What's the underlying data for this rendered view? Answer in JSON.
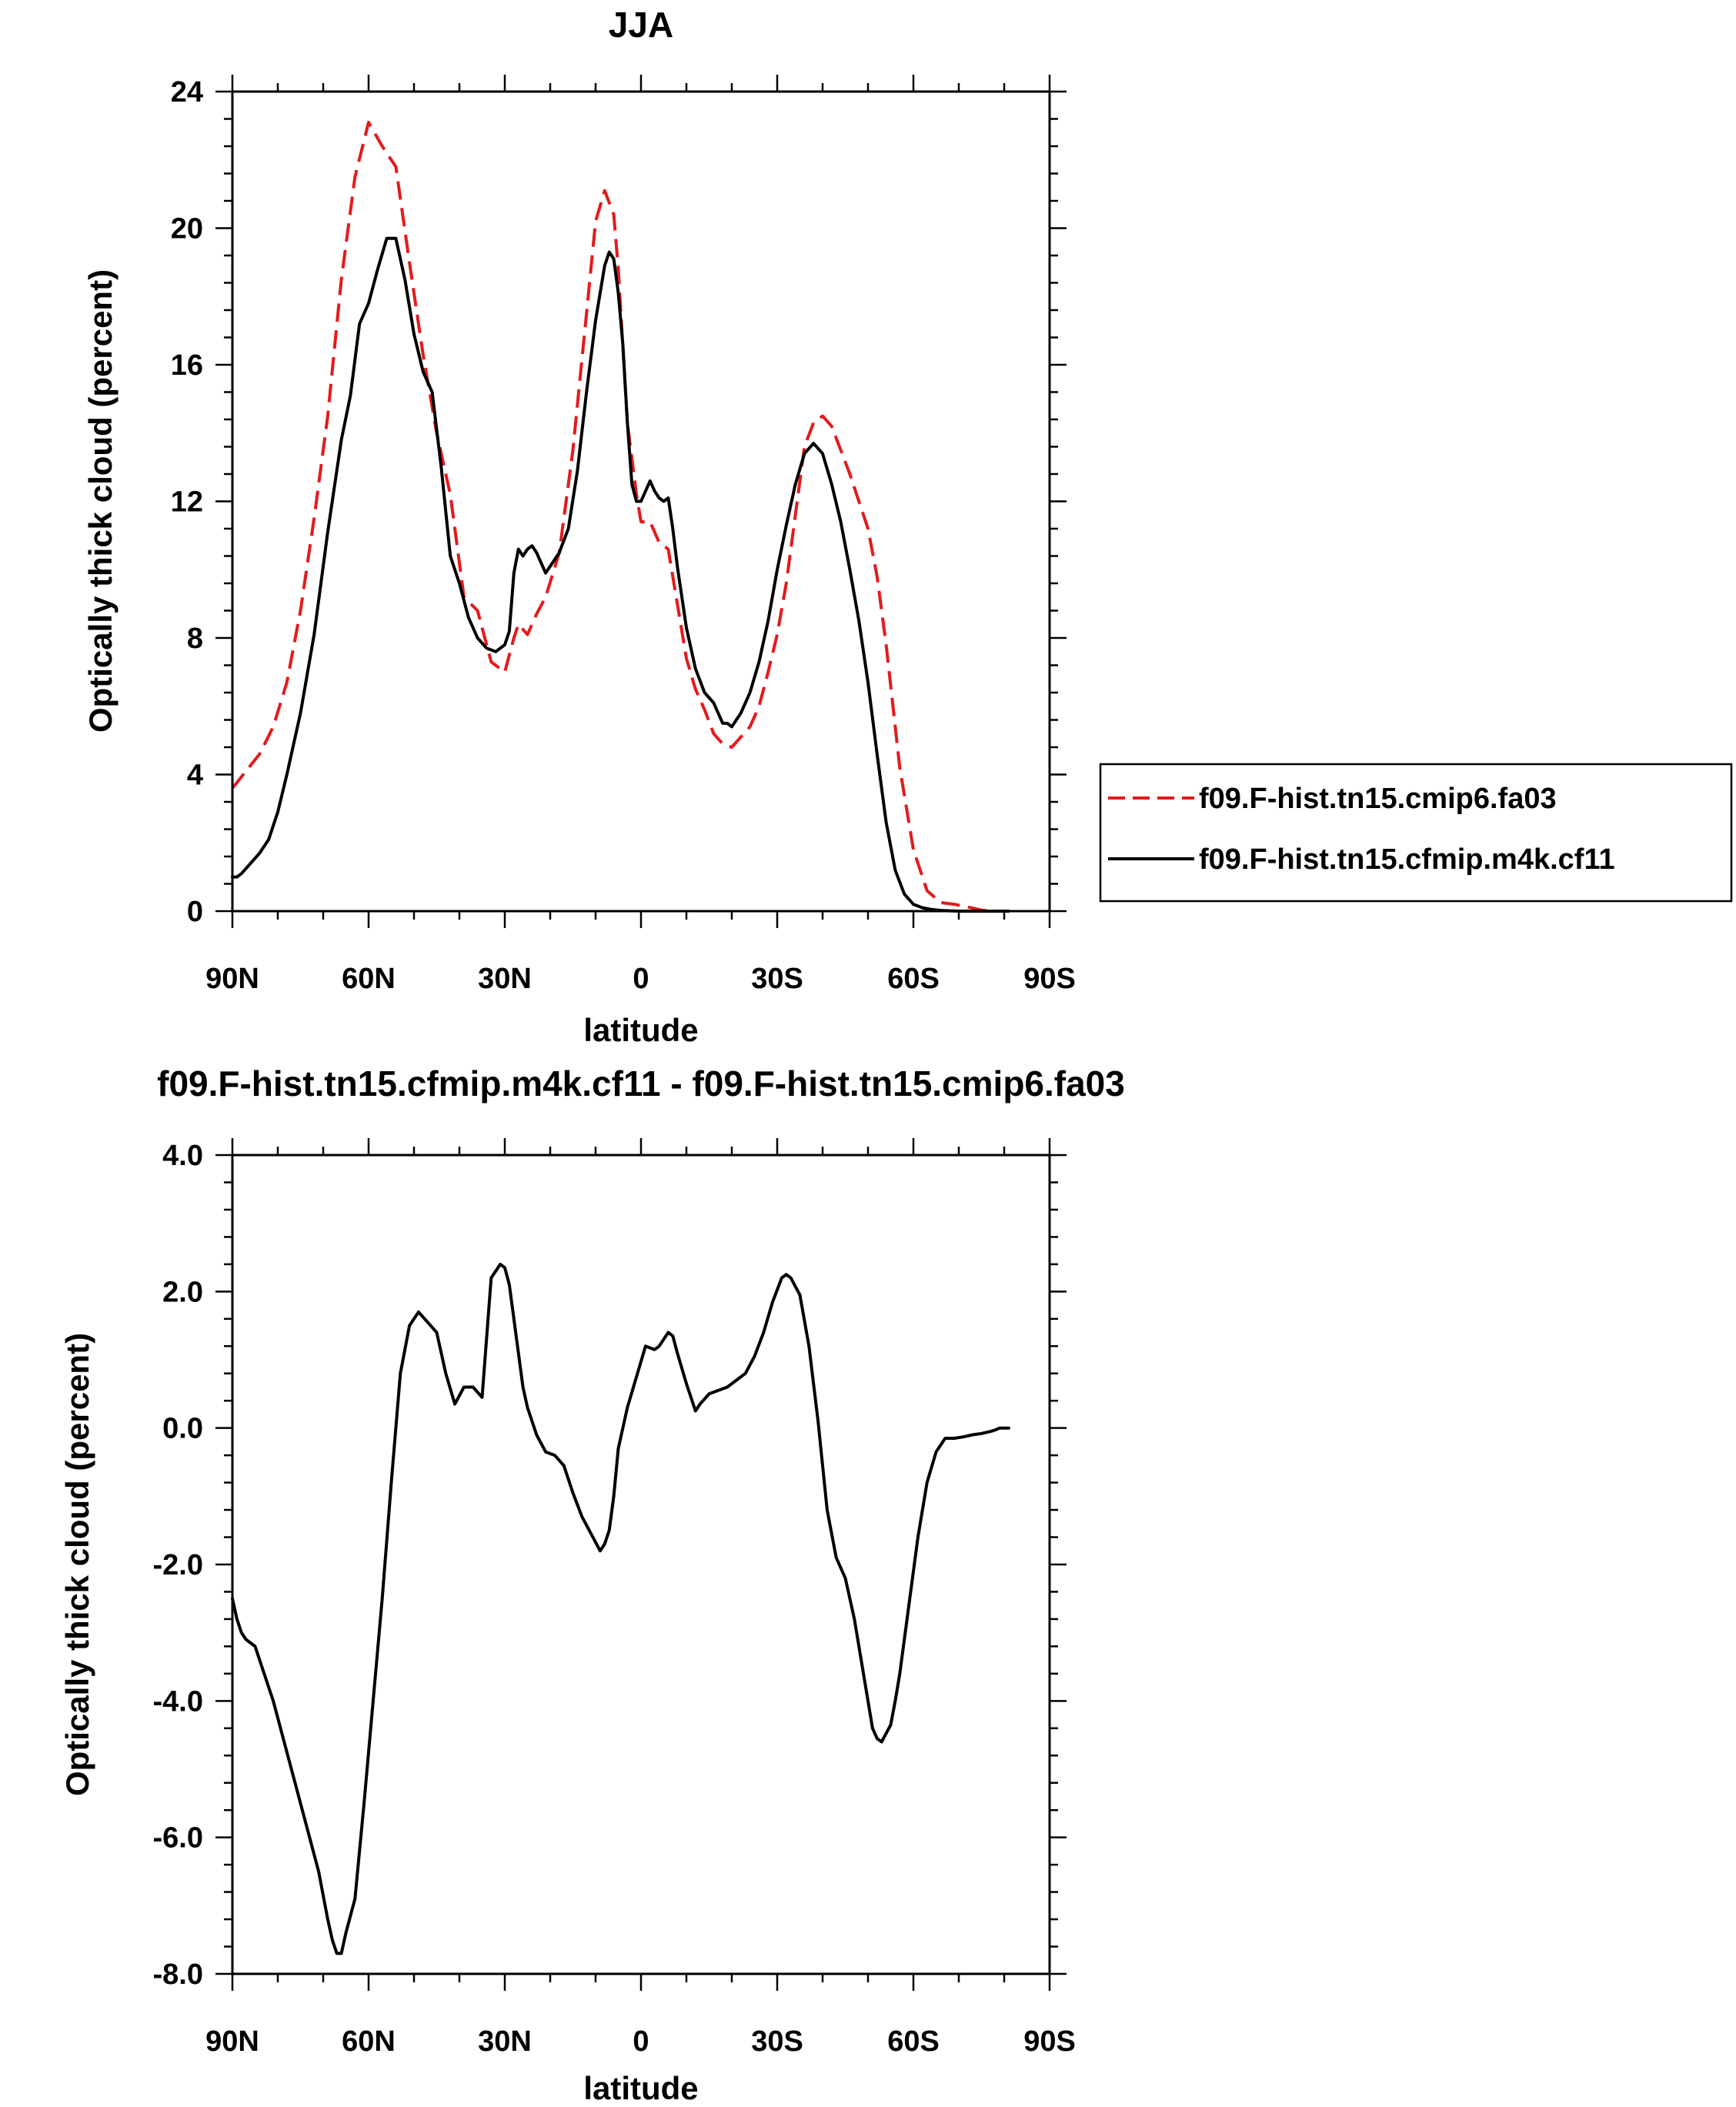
{
  "chart_data": [
    {
      "type": "line",
      "title": "JJA",
      "xlabel": "latitude",
      "ylabel": "Optically thick cloud (percent)",
      "xlim": [
        90,
        -90
      ],
      "ylim": [
        0,
        24
      ],
      "xticks": [
        90,
        60,
        30,
        0,
        -30,
        -60,
        -90
      ],
      "xtick_labels": [
        "90N",
        "60N",
        "30N",
        "0",
        "30S",
        "60S",
        "90S"
      ],
      "yticks": [
        0,
        4,
        8,
        12,
        16,
        20,
        24
      ],
      "ytick_labels": [
        "0",
        "4",
        "8",
        "12",
        "16",
        "20",
        "24"
      ],
      "legend_position": "right",
      "series": [
        {
          "name": "f09.F-hist.tn15.cmip6.fa03",
          "color": "#e41a1c",
          "style": "dashed",
          "x": [
            90,
            87,
            84,
            81,
            78,
            75,
            72,
            69,
            66,
            63,
            60,
            57,
            54,
            51,
            48,
            45,
            42,
            39,
            36,
            33,
            30,
            28,
            27,
            25,
            23,
            21,
            18,
            15,
            12,
            10,
            8,
            6,
            5,
            3,
            1,
            0,
            -2,
            -4,
            -6,
            -8,
            -10,
            -12,
            -14,
            -16,
            -18,
            -20,
            -22,
            -24,
            -26,
            -28,
            -30,
            -32,
            -34,
            -36,
            -38,
            -40,
            -42,
            -44,
            -46,
            -48,
            -50,
            -52,
            -54,
            -57,
            -60,
            -63,
            -66,
            -69,
            -72,
            -75,
            -78,
            -81
          ],
          "y": [
            3.6,
            4.1,
            4.6,
            5.4,
            6.7,
            8.8,
            11.5,
            14.5,
            18.5,
            21.5,
            23.1,
            22.4,
            21.8,
            19.0,
            16.3,
            14.0,
            12.2,
            9.2,
            8.8,
            7.3,
            7.0,
            8.0,
            8.4,
            8.1,
            8.7,
            9.2,
            10.5,
            13.5,
            17.5,
            20.2,
            21.1,
            20.4,
            18.8,
            14.3,
            12.2,
            11.4,
            11.4,
            10.8,
            10.6,
            9.0,
            7.4,
            6.5,
            5.9,
            5.2,
            4.9,
            4.8,
            5.1,
            5.4,
            6.0,
            7.0,
            8.1,
            9.6,
            11.6,
            13.6,
            14.3,
            14.5,
            14.2,
            13.5,
            12.8,
            12.0,
            11.2,
            9.8,
            7.8,
            4.2,
            1.8,
            0.6,
            0.25,
            0.2,
            0.12,
            0.03,
            0.0,
            0.0
          ]
        },
        {
          "name": "f09.F-hist.tn15.cfmip.m4k.cf11",
          "color": "#000000",
          "style": "solid",
          "x": [
            90,
            89,
            88,
            86,
            84,
            82,
            80,
            78,
            75,
            72,
            69,
            66,
            64,
            62,
            60,
            58,
            56,
            54,
            52,
            50,
            48,
            46,
            44,
            42,
            40,
            38,
            36,
            34,
            32,
            30,
            29,
            28,
            27,
            26,
            25,
            24,
            23,
            22,
            21,
            20,
            18,
            16,
            14,
            12,
            10,
            8,
            7,
            6,
            5,
            4,
            3,
            2,
            1,
            0,
            -1,
            -2,
            -3,
            -4,
            -5,
            -6,
            -7,
            -8,
            -10,
            -12,
            -14,
            -16,
            -18,
            -19,
            -20,
            -22,
            -24,
            -26,
            -28,
            -30,
            -32,
            -34,
            -36,
            -38,
            -40,
            -42,
            -44,
            -46,
            -48,
            -50,
            -52,
            -54,
            -56,
            -58,
            -60,
            -62,
            -64,
            -66,
            -68,
            -70,
            -72,
            -75,
            -78,
            -81
          ],
          "y": [
            1.0,
            1.0,
            1.1,
            1.4,
            1.7,
            2.1,
            2.9,
            4.0,
            5.8,
            8.1,
            11.1,
            13.8,
            15.1,
            17.2,
            17.8,
            18.8,
            19.7,
            19.7,
            18.5,
            16.9,
            15.8,
            15.2,
            13.0,
            10.4,
            9.6,
            8.6,
            8.0,
            7.7,
            7.6,
            7.8,
            8.2,
            9.9,
            10.6,
            10.4,
            10.6,
            10.7,
            10.5,
            10.2,
            9.9,
            10.1,
            10.5,
            11.2,
            12.9,
            15.2,
            17.3,
            18.9,
            19.3,
            19.1,
            18.1,
            16.6,
            14.3,
            12.5,
            12.0,
            12.0,
            12.3,
            12.6,
            12.3,
            12.1,
            12.0,
            12.1,
            11.2,
            10.1,
            8.3,
            7.1,
            6.4,
            6.1,
            5.5,
            5.5,
            5.4,
            5.8,
            6.4,
            7.3,
            8.5,
            10.0,
            11.3,
            12.5,
            13.4,
            13.7,
            13.4,
            12.5,
            11.4,
            10.0,
            8.5,
            6.7,
            4.6,
            2.6,
            1.2,
            0.5,
            0.2,
            0.1,
            0.05,
            0.02,
            0.01,
            0.0,
            0.0,
            0.0,
            0.0,
            0.0
          ]
        }
      ]
    },
    {
      "type": "line",
      "title": "f09.F-hist.tn15.cfmip.m4k.cf11 - f09.F-hist.tn15.cmip6.fa03",
      "xlabel": "latitude",
      "ylabel": "Optically thick cloud (percent)",
      "xlim": [
        90,
        -90
      ],
      "ylim": [
        -8,
        4
      ],
      "xticks": [
        90,
        60,
        30,
        0,
        -30,
        -60,
        -90
      ],
      "xtick_labels": [
        "90N",
        "60N",
        "30N",
        "0",
        "30S",
        "60S",
        "90S"
      ],
      "yticks": [
        -8,
        -6,
        -4,
        -2,
        0,
        2,
        4
      ],
      "ytick_labels": [
        "-8.0",
        "-6.0",
        "-4.0",
        "-2.0",
        "0.0",
        "2.0",
        "4.0"
      ],
      "series": [
        {
          "name": "f09.F-hist.tn15.cfmip.m4k.cf11 - f09.F-hist.tn15.cmip6.fa03",
          "color": "#000000",
          "style": "solid",
          "x": [
            90,
            89,
            88,
            87,
            85,
            83,
            81,
            79,
            77,
            75,
            73,
            71,
            69,
            68,
            67,
            66,
            65,
            63,
            61,
            59,
            57,
            55,
            53,
            51,
            49,
            47,
            45,
            43,
            41,
            39,
            37,
            35,
            33,
            31,
            30,
            29,
            28,
            27,
            26,
            25,
            23,
            21,
            19,
            17,
            15,
            13,
            11,
            9,
            8,
            7,
            6,
            5,
            3,
            1,
            -1,
            -3,
            -4,
            -6,
            -7,
            -8,
            -10,
            -12,
            -13,
            -15,
            -17,
            -19,
            -21,
            -23,
            -25,
            -27,
            -29,
            -31,
            -32,
            -33,
            -35,
            -37,
            -39,
            -41,
            -43,
            -44,
            -45,
            -47,
            -49,
            -51,
            -52,
            -53,
            -55,
            -56,
            -57,
            -59,
            -61,
            -63,
            -65,
            -67,
            -69,
            -71,
            -73,
            -75,
            -77,
            -78,
            -79,
            -80,
            -81
          ],
          "y": [
            -2.5,
            -2.8,
            -3.0,
            -3.1,
            -3.2,
            -3.6,
            -4.0,
            -4.5,
            -5.0,
            -5.5,
            -6.0,
            -6.5,
            -7.2,
            -7.5,
            -7.7,
            -7.7,
            -7.4,
            -6.9,
            -5.5,
            -4.0,
            -2.5,
            -0.8,
            0.8,
            1.5,
            1.7,
            1.55,
            1.4,
            0.8,
            0.35,
            0.6,
            0.6,
            0.45,
            2.2,
            2.4,
            2.35,
            2.1,
            1.6,
            1.1,
            0.6,
            0.3,
            -0.1,
            -0.35,
            -0.4,
            -0.55,
            -0.95,
            -1.3,
            -1.55,
            -1.8,
            -1.7,
            -1.5,
            -1.0,
            -0.3,
            0.3,
            0.75,
            1.2,
            1.15,
            1.2,
            1.4,
            1.35,
            1.1,
            0.65,
            0.25,
            0.35,
            0.5,
            0.55,
            0.6,
            0.7,
            0.8,
            1.05,
            1.4,
            1.85,
            2.2,
            2.25,
            2.2,
            1.95,
            1.2,
            0.1,
            -1.2,
            -1.9,
            -2.05,
            -2.2,
            -2.8,
            -3.6,
            -4.4,
            -4.55,
            -4.6,
            -4.35,
            -4.0,
            -3.6,
            -2.6,
            -1.6,
            -0.8,
            -0.35,
            -0.15,
            -0.15,
            -0.13,
            -0.1,
            -0.08,
            -0.05,
            -0.03,
            0.0,
            0.0,
            0.0
          ]
        }
      ]
    }
  ]
}
